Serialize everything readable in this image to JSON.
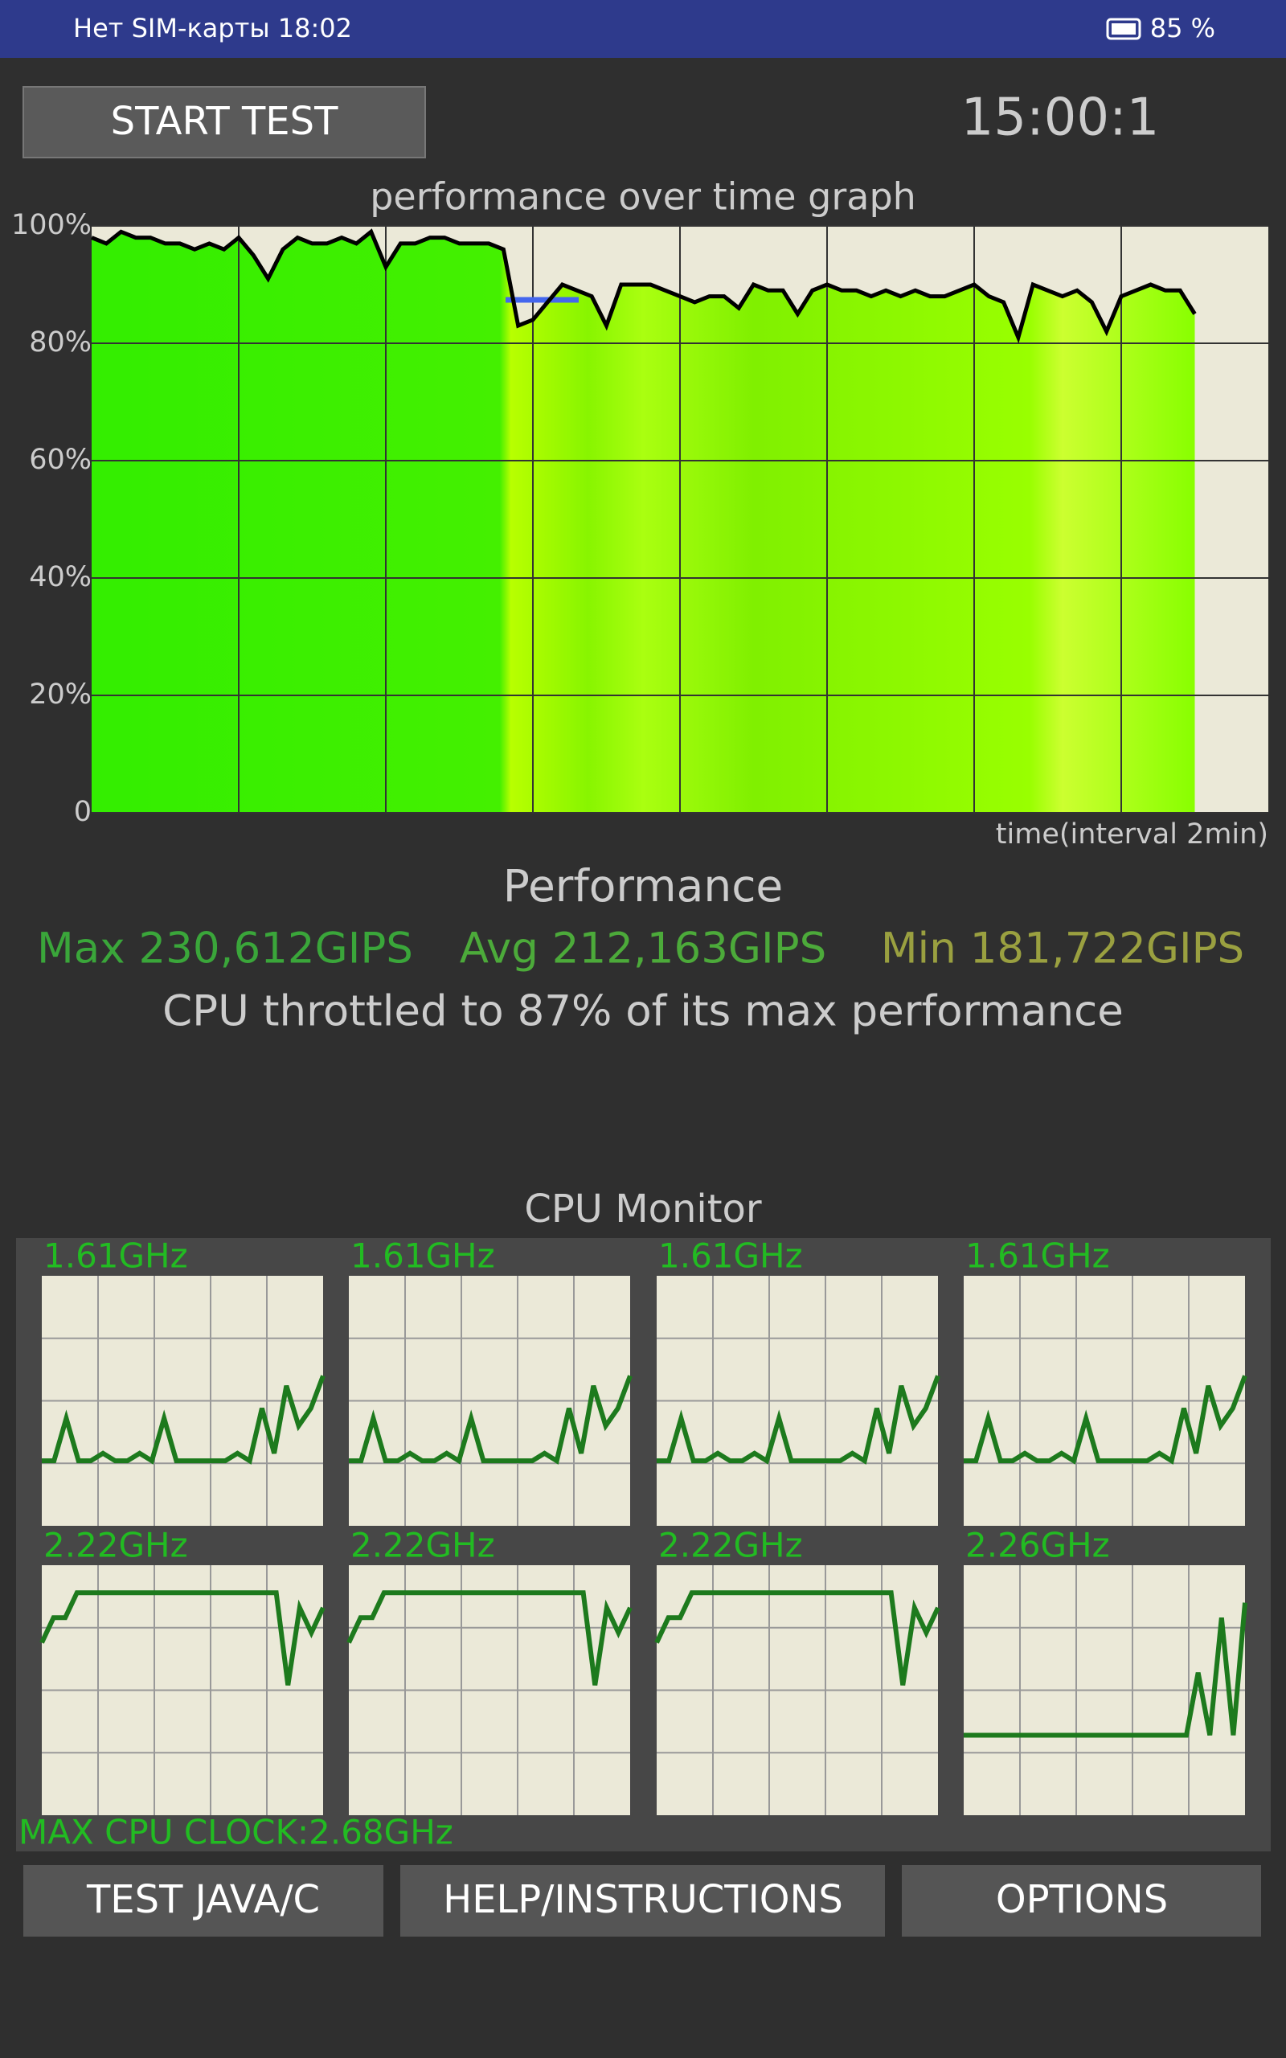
{
  "status_bar": {
    "carrier_time": "Нет SIM-карты 18:02",
    "battery": "85 %"
  },
  "start_button": "START TEST",
  "timer": "15:00:1",
  "chart_data": {
    "type": "line",
    "title": "performance over time graph",
    "x_label": "time(interval 2min)",
    "ylim": [
      0,
      100
    ],
    "yticks": [
      0,
      {
        "value": 20,
        "label": "20%"
      },
      {
        "value": 40,
        "label": "40%"
      },
      {
        "value": 60,
        "label": "60%"
      },
      {
        "value": 80,
        "label": "80%"
      },
      {
        "value": 100,
        "label": "100%"
      }
    ],
    "grid": true,
    "color": "#000000",
    "values": [
      98,
      97,
      99,
      98,
      98,
      97,
      97,
      96,
      97,
      96,
      98,
      95,
      91,
      96,
      98,
      97,
      97,
      98,
      97,
      99,
      93,
      97,
      97,
      98,
      98,
      97,
      97,
      97,
      96,
      83,
      84,
      87,
      90,
      89,
      88,
      83,
      90,
      90,
      90,
      89,
      88,
      87,
      88,
      88,
      86,
      90,
      89,
      89,
      85,
      89,
      90,
      89,
      89,
      88,
      89,
      88,
      89,
      88,
      88,
      89,
      90,
      88,
      87,
      81,
      90,
      89,
      88,
      89,
      87,
      82,
      88,
      89,
      90,
      89,
      89,
      85
    ]
  },
  "performance": {
    "title": "Performance",
    "max": "Max 230,612GIPS",
    "avg": "Avg 212,163GIPS",
    "min": "Min 181,722GIPS",
    "throttle": "CPU throttled to 87% of its max performance"
  },
  "cpu_monitor": {
    "title": "CPU Monitor",
    "color": "#1d7a1d",
    "cores": [
      {
        "label": "1.61GHz",
        "values": [
          26,
          26,
          43,
          26,
          26,
          29,
          26,
          26,
          29,
          26,
          43,
          26,
          26,
          26,
          26,
          26,
          29,
          26,
          47,
          29,
          56,
          40,
          47,
          60
        ]
      },
      {
        "label": "1.61GHz",
        "values": [
          26,
          26,
          43,
          26,
          26,
          29,
          26,
          26,
          29,
          26,
          43,
          26,
          26,
          26,
          26,
          26,
          29,
          26,
          47,
          29,
          56,
          40,
          47,
          60
        ]
      },
      {
        "label": "1.61GHz",
        "values": [
          26,
          26,
          43,
          26,
          26,
          29,
          26,
          26,
          29,
          26,
          43,
          26,
          26,
          26,
          26,
          26,
          29,
          26,
          47,
          29,
          56,
          40,
          47,
          60
        ]
      },
      {
        "label": "1.61GHz",
        "values": [
          26,
          26,
          43,
          26,
          26,
          29,
          26,
          26,
          29,
          26,
          43,
          26,
          26,
          26,
          26,
          26,
          29,
          26,
          47,
          29,
          56,
          40,
          47,
          60
        ]
      },
      {
        "label": "2.22GHz",
        "values": [
          69,
          79,
          79,
          89,
          89,
          89,
          89,
          89,
          89,
          89,
          89,
          89,
          89,
          89,
          89,
          89,
          89,
          89,
          89,
          89,
          89,
          52,
          83,
          73,
          83
        ]
      },
      {
        "label": "2.22GHz",
        "values": [
          69,
          79,
          79,
          89,
          89,
          89,
          89,
          89,
          89,
          89,
          89,
          89,
          89,
          89,
          89,
          89,
          89,
          89,
          89,
          89,
          89,
          52,
          83,
          73,
          83
        ]
      },
      {
        "label": "2.22GHz",
        "values": [
          69,
          79,
          79,
          89,
          89,
          89,
          89,
          89,
          89,
          89,
          89,
          89,
          89,
          89,
          89,
          89,
          89,
          89,
          89,
          89,
          89,
          52,
          83,
          73,
          83
        ]
      },
      {
        "label": "2.26GHz",
        "values": [
          32,
          32,
          32,
          32,
          32,
          32,
          32,
          32,
          32,
          32,
          32,
          32,
          32,
          32,
          32,
          32,
          32,
          32,
          32,
          32,
          57,
          32,
          79,
          32,
          85
        ]
      }
    ],
    "max_clock": "MAX CPU CLOCK:2.68GHz"
  },
  "buttons": [
    "TEST JAVA/C",
    "HELP/INSTRUCTIONS",
    "OPTIONS"
  ]
}
